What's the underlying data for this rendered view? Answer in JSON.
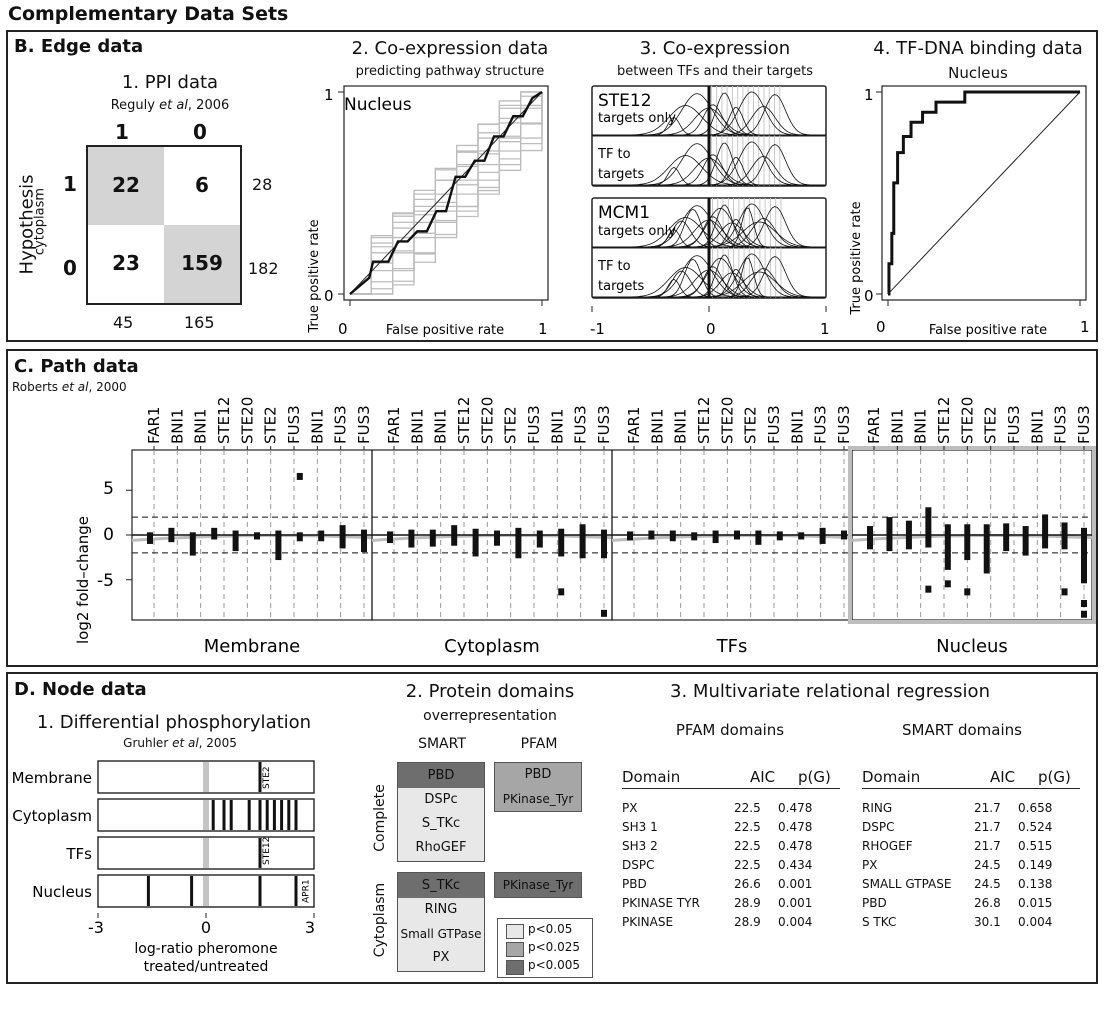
{
  "page_title": "Complementary Data Sets",
  "edge": {
    "section_title": "B. Edge data",
    "ppi": {
      "title": "1. PPI data",
      "cite_author": "Reguly",
      "cite_etal": "et al",
      "cite_year": ", 2006",
      "col_headers": [
        "1",
        "0"
      ],
      "row_headers": [
        "1",
        "0"
      ],
      "side_label": "Hypothesis",
      "side_sublabel": "cytoplasm",
      "cells": [
        [
          "22",
          "6"
        ],
        [
          "23",
          "159"
        ]
      ],
      "row_totals": [
        "28",
        "182"
      ],
      "col_totals": [
        "45",
        "165"
      ],
      "shade": "#d4d4d4"
    },
    "coexp": {
      "title": "2. Co-expression data",
      "subtitle": "predicting pathway structure",
      "inset_label": "Nucleus",
      "xlabel": "False positive rate",
      "ylabel": "True positive rate",
      "xticks": [
        "0",
        "1"
      ],
      "yticks": [
        "0",
        "1"
      ]
    },
    "coexp_tf": {
      "title": "3. Co-expression",
      "subtitle": "between TFs and their targets",
      "groups": [
        {
          "name": "STE12",
          "rows": [
            [
              "targets only"
            ],
            [
              "TF to",
              "targets"
            ]
          ]
        },
        {
          "name": "MCM1",
          "rows": [
            [
              "targets only"
            ],
            [
              "TF to",
              "targets"
            ]
          ]
        }
      ],
      "xticks": [
        "-1",
        "0",
        "1"
      ]
    },
    "tfdna": {
      "title": "4. TF-DNA binding data",
      "subtitle": "Nucleus",
      "xlabel": "False positive rate",
      "ylabel": "True positive rate",
      "xticks": [
        "0",
        "1"
      ],
      "yticks": [
        "0",
        "1"
      ]
    }
  },
  "path": {
    "section_title": "C. Path data",
    "cite_author": "Roberts",
    "cite_etal": "et al",
    "cite_year": ", 2000",
    "ylabel": "log2 fold–change",
    "yticks": [
      "5",
      "0",
      "-5"
    ]
  },
  "node": {
    "section_title": "D. Node data",
    "phos": {
      "title": "1. Differential phosphorylation",
      "cite_author": "Gruhler",
      "cite_etal": "et al",
      "cite_year": ", 2005",
      "rows": [
        "Membrane",
        "Cytoplasm",
        "TFs",
        "Nucleus"
      ],
      "tags": [
        "STE2",
        "",
        "STE12",
        "APR1"
      ],
      "xticks": [
        "-3",
        "0",
        "3"
      ],
      "xlabel_line1": "log-ratio pheromone",
      "xlabel_line2": "treated/untreated"
    },
    "domains": {
      "title": "2. Protein domains",
      "subtitle": "overrepresentation",
      "smart_header": "SMART",
      "pfam_header": "PFAM",
      "complete_label": "Complete",
      "cytoplasm_label": "Cytoplasm",
      "complete_smart": [
        "PBD",
        "DSPc",
        "S_TKc",
        "RhoGEF"
      ],
      "complete_pfam": [
        "PBD",
        "PKinase_Tyr"
      ],
      "cyto_smart": [
        "S_TKc",
        "RING",
        "Small GTPase",
        "PX"
      ],
      "cyto_pfam": [
        "PKinase_Tyr"
      ],
      "legend": [
        "p<0.05",
        "p<0.025",
        "p<0.005"
      ],
      "colors": {
        "p05": "#e8e8e8",
        "p025": "#a6a6a6",
        "p005": "#6e6e6e"
      }
    },
    "regression": {
      "title": "3. Multivariate relational regression",
      "pfam_title": "PFAM domains",
      "smart_title": "SMART domains",
      "headers": [
        "Domain",
        "AIC",
        "p(G)"
      ],
      "pfam_rows": [
        [
          "PX",
          "22.5",
          "0.478"
        ],
        [
          "SH3 1",
          "22.5",
          "0.478"
        ],
        [
          "SH3 2",
          "22.5",
          "0.478"
        ],
        [
          "DSPC",
          "22.5",
          "0.434"
        ],
        [
          "PBD",
          "26.6",
          "0.001"
        ],
        [
          "PKINASE TYR",
          "28.9",
          "0.001"
        ],
        [
          "PKINASE",
          "28.9",
          "0.004"
        ]
      ],
      "smart_rows": [
        [
          "RING",
          "21.7",
          "0.658"
        ],
        [
          "DSPC",
          "21.7",
          "0.524"
        ],
        [
          "RHOGEF",
          "21.7",
          "0.515"
        ],
        [
          "PX",
          "24.5",
          "0.149"
        ],
        [
          "SMALL GTPASE",
          "24.5",
          "0.138"
        ],
        [
          "PBD",
          "26.8",
          "0.015"
        ],
        [
          "S TKC",
          "30.1",
          "0.004"
        ]
      ]
    }
  },
  "chart_data": [
    {
      "id": "ppi",
      "type": "table",
      "title": "1. PPI data",
      "values": [
        [
          22,
          6
        ],
        [
          23,
          159
        ]
      ],
      "row_totals": [
        28,
        182
      ],
      "col_totals": [
        45,
        165
      ]
    },
    {
      "id": "coexp_roc",
      "type": "line",
      "title": "2. Co-expression data",
      "xlabel": "False positive rate",
      "ylabel": "True positive rate",
      "xlim": [
        0,
        1
      ],
      "ylim": [
        0,
        1
      ],
      "series": [
        {
          "x": [
            0,
            0.05,
            0.1,
            0.12,
            0.2,
            0.25,
            0.3,
            0.35,
            0.4,
            0.45,
            0.5,
            0.55,
            0.6,
            0.65,
            0.7,
            0.75,
            0.8,
            0.85,
            0.9,
            0.95,
            1.0
          ],
          "y": [
            0,
            0.04,
            0.08,
            0.16,
            0.16,
            0.26,
            0.26,
            0.31,
            0.31,
            0.41,
            0.41,
            0.58,
            0.58,
            0.66,
            0.66,
            0.78,
            0.78,
            0.88,
            0.88,
            0.97,
            1.0
          ]
        }
      ],
      "background_series_count": 12
    },
    {
      "id": "tfdna_roc",
      "type": "line",
      "title": "4. TF-DNA binding data",
      "xlabel": "False positive rate",
      "ylabel": "True positive rate",
      "xlim": [
        0,
        1
      ],
      "ylim": [
        0,
        1
      ],
      "series": [
        {
          "x": [
            0,
            0.005,
            0.005,
            0.02,
            0.02,
            0.03,
            0.03,
            0.05,
            0.05,
            0.08,
            0.08,
            0.12,
            0.12,
            0.18,
            0.18,
            0.25,
            0.25,
            0.4,
            0.4,
            1.0
          ],
          "y": [
            0,
            0.0,
            0.15,
            0.15,
            0.3,
            0.3,
            0.55,
            0.55,
            0.7,
            0.7,
            0.78,
            0.78,
            0.85,
            0.85,
            0.9,
            0.9,
            0.95,
            0.95,
            1.0,
            1.0
          ]
        }
      ]
    },
    {
      "id": "path_data",
      "type": "scatter",
      "title": "C. Path data",
      "ylabel": "log2 fold–change",
      "ylim": [
        -9.5,
        9.5
      ],
      "hlines": [
        2,
        -2
      ],
      "categories": [
        "FAR1",
        "BNI1",
        "BNI1",
        "STE12",
        "STE20",
        "STE2",
        "FUS3",
        "BNI1",
        "FUS3",
        "FUS3"
      ],
      "groups": [
        {
          "name": "Membrane",
          "ranges": [
            [
              -1,
              0.3
            ],
            [
              -0.8,
              0.8
            ],
            [
              -2.3,
              0.3
            ],
            [
              -0.5,
              0.8
            ],
            [
              -1.8,
              0.5
            ],
            [
              -0.5,
              0.3
            ],
            [
              -2.8,
              0.5
            ],
            [
              -0.7,
              0.3
            ],
            [
              -0.7,
              0.5
            ],
            [
              -1.5,
              1.1
            ],
            [
              -1.9,
              0.6
            ]
          ],
          "outliers": [
            [
              7,
              6.6
            ]
          ]
        },
        {
          "name": "Cytoplasm",
          "ranges": [
            [
              -0.9,
              0.4
            ],
            [
              -1.4,
              0.6
            ],
            [
              -1.3,
              0.6
            ],
            [
              -1.2,
              1.1
            ],
            [
              -2.4,
              0.7
            ],
            [
              -1.2,
              0.5
            ],
            [
              -2.6,
              0.8
            ],
            [
              -1.4,
              0.5
            ],
            [
              -2.4,
              0.7
            ],
            [
              -2.6,
              1.2
            ],
            [
              -2.6,
              0.6
            ]
          ],
          "outliers": [
            [
              8,
              -6.3
            ],
            [
              10,
              -8.7
            ]
          ]
        },
        {
          "name": "TFs",
          "ranges": [
            [
              -0.6,
              0.4
            ],
            [
              -0.5,
              0.5
            ],
            [
              -0.7,
              0.5
            ],
            [
              -0.6,
              0.3
            ],
            [
              -0.9,
              0.5
            ],
            [
              -0.5,
              0.5
            ],
            [
              -1.1,
              0.5
            ],
            [
              -0.6,
              0.4
            ],
            [
              -0.5,
              0.3
            ],
            [
              -1.0,
              0.8
            ],
            [
              -0.5,
              0.5
            ]
          ],
          "outliers": []
        },
        {
          "name": "Nucleus",
          "ranges": [
            [
              -1.6,
              1.0
            ],
            [
              -1.8,
              2.0
            ],
            [
              -1.6,
              1.6
            ],
            [
              -1.4,
              3.1
            ],
            [
              -3.9,
              1.2
            ],
            [
              -2.8,
              1.2
            ],
            [
              -4.3,
              1.2
            ],
            [
              -1.8,
              1.3
            ],
            [
              -2.3,
              1.0
            ],
            [
              -1.5,
              2.3
            ],
            [
              -1.6,
              1.4
            ],
            [
              -5.4,
              0.8
            ]
          ],
          "outliers": [
            [
              3,
              -6.0
            ],
            [
              4,
              -5.4
            ],
            [
              5,
              -6.3
            ],
            [
              10,
              -6.3
            ],
            [
              11,
              -7.6
            ],
            [
              11,
              -8.8
            ]
          ]
        }
      ]
    },
    {
      "id": "phosphorylation",
      "type": "scatter",
      "title": "1. Differential phosphorylation",
      "xlabel": "log-ratio pheromone treated/untreated",
      "xlim": [
        -3,
        3
      ],
      "rows": [
        {
          "name": "Membrane",
          "values": [
            1.5
          ]
        },
        {
          "name": "Cytoplasm",
          "values": [
            0.2,
            0.5,
            0.7,
            1.2,
            1.5,
            1.7,
            1.9,
            2.1,
            2.3,
            2.5
          ]
        },
        {
          "name": "TFs",
          "values": [
            1.5
          ]
        },
        {
          "name": "Nucleus",
          "values": [
            -1.6,
            -0.4,
            1.5,
            2.5
          ]
        }
      ]
    }
  ]
}
